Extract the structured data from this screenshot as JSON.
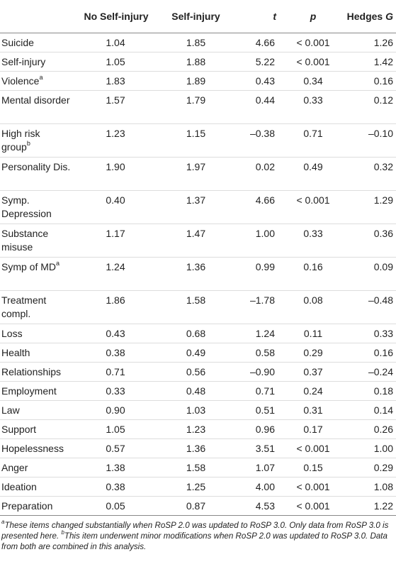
{
  "table": {
    "headers": [
      "",
      "No Self-injury",
      "Self-injury",
      "t",
      "p",
      "Hedges G"
    ],
    "headers_pre": [
      "",
      "No Self-injury",
      "Self-injury",
      "",
      "",
      "Hedges "
    ],
    "headers_italic": [
      "",
      "",
      "",
      "t",
      "p",
      "G"
    ],
    "rows": [
      {
        "label": "Suicide",
        "sup": "",
        "c1": "1.04",
        "c2": "1.85",
        "c3": "4.66",
        "c4": "< 0.001",
        "c5": "1.26"
      },
      {
        "label": "Self-injury",
        "sup": "",
        "c1": "1.05",
        "c2": "1.88",
        "c3": "5.22",
        "c4": "< 0.001",
        "c5": "1.42"
      },
      {
        "label": "Violence",
        "sup": "a",
        "c1": "1.83",
        "c2": "1.89",
        "c3": "0.43",
        "c4": "0.34",
        "c5": "0.16"
      },
      {
        "label": "Mental disorder",
        "sup": "",
        "c1": "1.57",
        "c2": "1.79",
        "c3": "0.44",
        "c4": "0.33",
        "c5": "0.12"
      },
      {
        "label": "High risk group",
        "sup": "b",
        "c1": "1.23",
        "c2": "1.15",
        "c3": "–0.38",
        "c4": "0.71",
        "c5": "–0.10"
      },
      {
        "label": "Personality Dis.",
        "sup": "",
        "c1": "1.90",
        "c2": "1.97",
        "c3": "0.02",
        "c4": "0.49",
        "c5": "0.32"
      },
      {
        "label": "Symp. Depression",
        "sup": "",
        "c1": "0.40",
        "c2": "1.37",
        "c3": "4.66",
        "c4": "< 0.001",
        "c5": "1.29"
      },
      {
        "label": "Substance misuse",
        "sup": "",
        "c1": "1.17",
        "c2": "1.47",
        "c3": "1.00",
        "c4": "0.33",
        "c5": "0.36"
      },
      {
        "label": "Symp of MD",
        "sup": "a",
        "c1": "1.24",
        "c2": "1.36",
        "c3": "0.99",
        "c4": "0.16",
        "c5": "0.09"
      },
      {
        "label": "Treatment compl.",
        "sup": "",
        "c1": "1.86",
        "c2": "1.58",
        "c3": "–1.78",
        "c4": "0.08",
        "c5": "–0.48"
      },
      {
        "label": "Loss",
        "sup": "",
        "c1": "0.43",
        "c2": "0.68",
        "c3": "1.24",
        "c4": "0.11",
        "c5": "0.33"
      },
      {
        "label": "Health",
        "sup": "",
        "c1": "0.38",
        "c2": "0.49",
        "c3": "0.58",
        "c4": "0.29",
        "c5": "0.16"
      },
      {
        "label": "Relationships",
        "sup": "",
        "c1": "0.71",
        "c2": "0.56",
        "c3": "–0.90",
        "c4": "0.37",
        "c5": "–0.24"
      },
      {
        "label": "Employment",
        "sup": "",
        "c1": "0.33",
        "c2": "0.48",
        "c3": "0.71",
        "c4": "0.24",
        "c5": "0.18"
      },
      {
        "label": "Law",
        "sup": "",
        "c1": "0.90",
        "c2": "1.03",
        "c3": "0.51",
        "c4": "0.31",
        "c5": "0.14"
      },
      {
        "label": "Support",
        "sup": "",
        "c1": "1.05",
        "c2": "1.23",
        "c3": "0.96",
        "c4": "0.17",
        "c5": "0.26"
      },
      {
        "label": "Hopelessness",
        "sup": "",
        "c1": "0.57",
        "c2": "1.36",
        "c3": "3.51",
        "c4": "< 0.001",
        "c5": "1.00"
      },
      {
        "label": "Anger",
        "sup": "",
        "c1": "1.38",
        "c2": "1.58",
        "c3": "1.07",
        "c4": "0.15",
        "c5": "0.29"
      },
      {
        "label": "Ideation",
        "sup": "",
        "c1": "0.38",
        "c2": "1.25",
        "c3": "4.00",
        "c4": "< 0.001",
        "c5": "1.08"
      },
      {
        "label": "Preparation",
        "sup": "",
        "c1": "0.05",
        "c2": "0.87",
        "c3": "4.53",
        "c4": "< 0.001",
        "c5": "1.22"
      }
    ]
  },
  "footnotes": {
    "a_mark": "a",
    "a_text": "These items changed substantially when RoSP 2.0 was updated to RoSP 3.0. Only data from RoSP 3.0 is presented here.",
    "b_mark": "b",
    "b_text": "This item underwent minor modifications when RoSP 2.0 was updated to RoSP 3.0. Data from both are combined in this analysis."
  }
}
